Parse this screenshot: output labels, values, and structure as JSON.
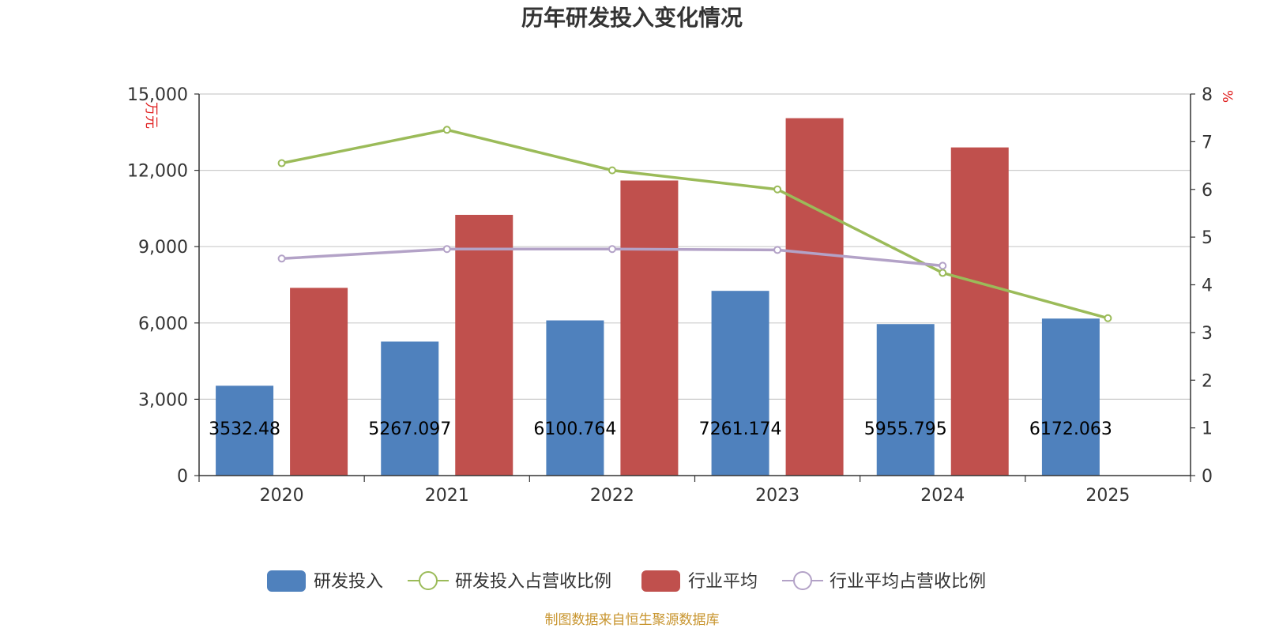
{
  "chart_data": {
    "type": "bar",
    "title": "历年研发投入变化情况",
    "categories": [
      "2020",
      "2021",
      "2022",
      "2023",
      "2024",
      "2025"
    ],
    "y_left": {
      "unit": "万元",
      "min": 0,
      "max": 15000,
      "ticks": [
        0,
        3000,
        6000,
        9000,
        12000,
        15000
      ],
      "tick_labels": [
        "0",
        "3,000",
        "6,000",
        "9,000",
        "12,000",
        "15,000"
      ]
    },
    "y_right": {
      "unit": "%",
      "min": 0,
      "max": 8,
      "ticks": [
        0,
        1,
        2,
        3,
        4,
        5,
        6,
        7,
        8
      ],
      "tick_labels": [
        "0",
        "1",
        "2",
        "3",
        "4",
        "5",
        "6",
        "7",
        "8"
      ]
    },
    "grid": true,
    "legend_position": "bottom",
    "series": [
      {
        "name": "研发投入",
        "type": "bar",
        "axis": "left",
        "color": "#4f81bd",
        "values": [
          3532.48,
          5267.097,
          6100.764,
          7261.174,
          5955.795,
          6172.063
        ],
        "labels": [
          "3532.48",
          "5267.097",
          "6100.764",
          "7261.174",
          "5955.795",
          "6172.063"
        ]
      },
      {
        "name": "研发投入占营收比例",
        "type": "line",
        "axis": "right",
        "color": "#9bbb59",
        "values": [
          6.55,
          7.25,
          6.4,
          6.0,
          4.25,
          3.3
        ]
      },
      {
        "name": "行业平均",
        "type": "bar",
        "axis": "left",
        "color": "#c0504d",
        "values": [
          7380,
          10250,
          11600,
          14050,
          12900,
          null
        ]
      },
      {
        "name": "行业平均占营收比例",
        "type": "line",
        "axis": "right",
        "color": "#b3a2c7",
        "values": [
          4.55,
          4.75,
          4.75,
          4.73,
          4.4,
          null
        ]
      }
    ],
    "source": "制图数据来自恒生聚源数据库"
  }
}
